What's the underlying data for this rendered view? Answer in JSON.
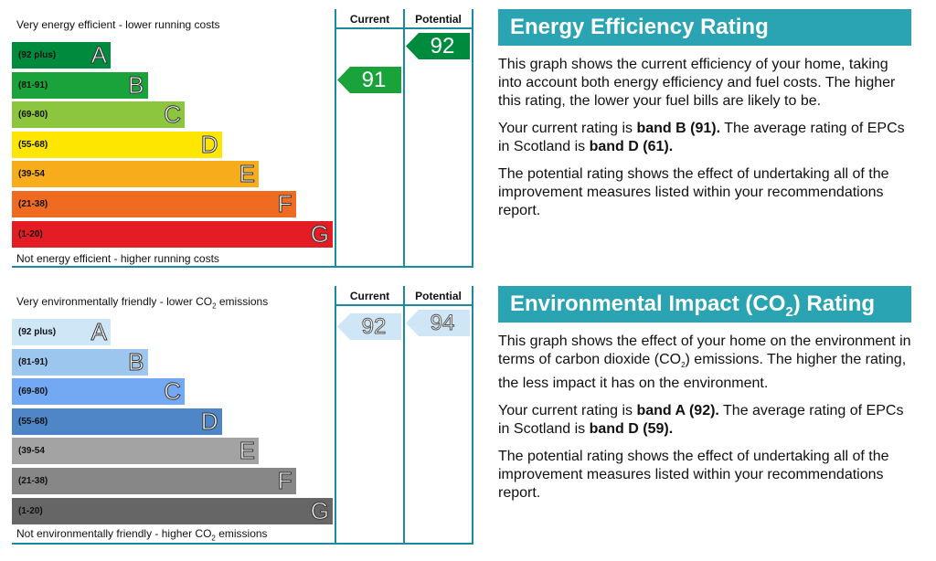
{
  "energy_chart": {
    "top_note": "Very energy efficient - lower running costs",
    "bottom_note": "Not energy efficient - higher running costs",
    "col_current": "Current",
    "col_potential": "Potential",
    "bands": [
      {
        "range": "(92 plus)",
        "letter": "A",
        "color": "#008a3e"
      },
      {
        "range": "(81-91)",
        "letter": "B",
        "color": "#19a33a"
      },
      {
        "range": "(69-80)",
        "letter": "C",
        "color": "#8cc63f"
      },
      {
        "range": "(55-68)",
        "letter": "D",
        "color": "#ffe600"
      },
      {
        "range": "(39-54",
        "letter": "E",
        "color": "#f7ac1c"
      },
      {
        "range": "(21-38)",
        "letter": "F",
        "color": "#ef6b22"
      },
      {
        "range": "(1-20)",
        "letter": "G",
        "color": "#e31d23"
      }
    ],
    "current": {
      "value": "91",
      "band_index": 1,
      "color": "#19a33a"
    },
    "potential": {
      "value": "92",
      "band_index": 0,
      "color": "#008a3e"
    }
  },
  "impact_chart": {
    "top_note_pre": "Very environmentally friendly - lower CO",
    "top_note_sub": "2",
    "top_note_post": " emissions",
    "bottom_note_pre": "Not environmentally friendly - higher CO",
    "bottom_note_sub": "2",
    "bottom_note_post": " emissions",
    "col_current": "Current",
    "col_potential": "Potential",
    "bands": [
      {
        "range": "(92 plus)",
        "letter": "A",
        "color": "#cfe6f7"
      },
      {
        "range": "(81-91)",
        "letter": "B",
        "color": "#9cc6ee"
      },
      {
        "range": "(69-80)",
        "letter": "C",
        "color": "#73a8f2"
      },
      {
        "range": "(55-68)",
        "letter": "D",
        "color": "#4e86c8"
      },
      {
        "range": "(39-54",
        "letter": "E",
        "color": "#a3a3a3"
      },
      {
        "range": "(21-38)",
        "letter": "F",
        "color": "#878787"
      },
      {
        "range": "(1-20)",
        "letter": "G",
        "color": "#666666"
      }
    ],
    "current": {
      "value": "92",
      "band_index": 0,
      "color": "#cfe6f7"
    },
    "potential": {
      "value": "94",
      "band_index": 0,
      "color": "#cfe6f7"
    }
  },
  "energy_panel": {
    "title": "Energy Efficiency Rating",
    "p1": "This graph shows the current efficiency of your home, taking into account both energy efficiency and fuel costs. The higher this rating, the lower your fuel bills are likely to be.",
    "p2_pre": "Your current rating is ",
    "p2_bold1": "band B (91).",
    "p2_mid": " The average rating of EPCs in Scotland is ",
    "p2_bold2": "band D (61).",
    "p3": "The potential rating shows the effect of undertaking all of the improvement measures listed within your recommendations report."
  },
  "impact_panel": {
    "title_pre": "Environmental Impact (CO",
    "title_sub": "2",
    "title_post": ") Rating",
    "p1_pre": "This graph shows the effect of your home on the environment in terms of carbon dioxide (CO",
    "p1_sub": "2",
    "p1_post": ") emissions. The higher the rating, the less impact it has on the environment.",
    "p2_pre": "Your current rating is ",
    "p2_bold1": "band A (92).",
    "p2_mid": " The average rating of EPCs in Scotland is ",
    "p2_bold2": "band D (59).",
    "p3": "The potential rating shows the effect of undertaking all of the improvement measures listed within your recommendations report."
  }
}
